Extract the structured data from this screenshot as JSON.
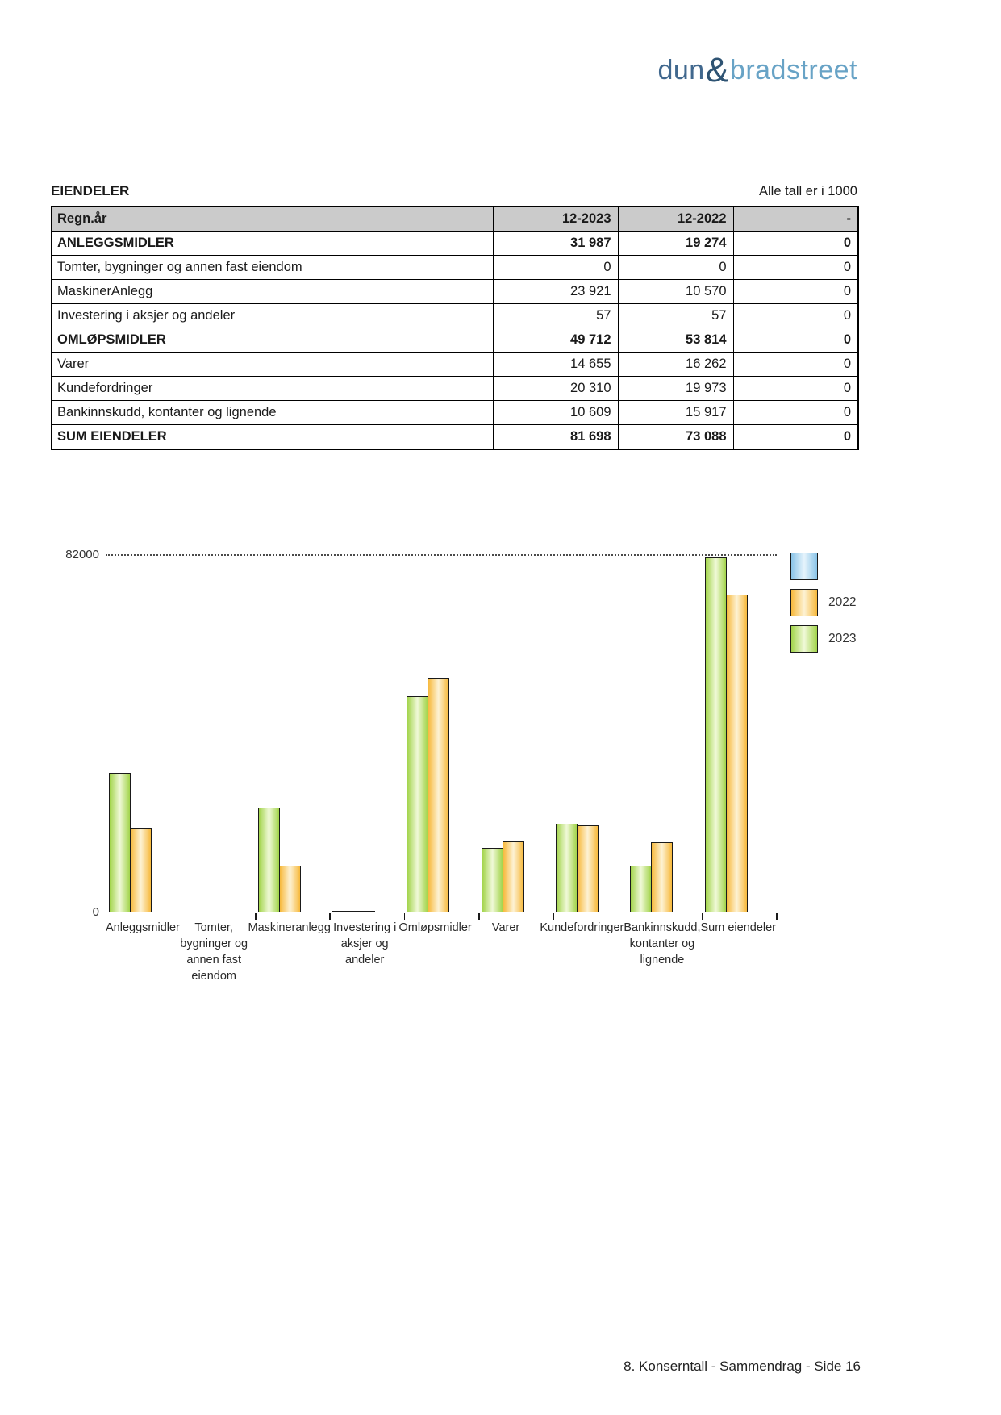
{
  "brand": {
    "part1": "dun",
    "amp": "&",
    "part2": "bradstreet",
    "color_part1": "#41688e",
    "color_amp": "#2e5373",
    "color_part2": "#68a3c6"
  },
  "header": {
    "title": "EIENDELER",
    "note": "Alle tall er i 1000"
  },
  "table": {
    "columns": [
      "Regn.år",
      "12-2023",
      "12-2022",
      "-"
    ],
    "rows": [
      {
        "cells": [
          "ANLEGGSMIDLER",
          "31 987",
          "19 274",
          "0"
        ],
        "bold": true
      },
      {
        "cells": [
          "Tomter, bygninger og annen fast eiendom",
          "0",
          "0",
          "0"
        ],
        "bold": false
      },
      {
        "cells": [
          "MaskinerAnlegg",
          "23 921",
          "10 570",
          "0"
        ],
        "bold": false
      },
      {
        "cells": [
          "Investering i aksjer og andeler",
          "57",
          "57",
          "0"
        ],
        "bold": false
      },
      {
        "cells": [
          "OMLØPSMIDLER",
          "49 712",
          "53 814",
          "0"
        ],
        "bold": true
      },
      {
        "cells": [
          "Varer",
          "14 655",
          "16 262",
          "0"
        ],
        "bold": false
      },
      {
        "cells": [
          "Kundefordringer",
          "20 310",
          "19 973",
          "0"
        ],
        "bold": false
      },
      {
        "cells": [
          "Bankinnskudd, kontanter og lignende",
          "10 609",
          "15 917",
          "0"
        ],
        "bold": false
      },
      {
        "cells": [
          "SUM EIENDELER",
          "81 698",
          "73 088",
          "0"
        ],
        "bold": true
      }
    ]
  },
  "chart_data": {
    "type": "bar",
    "title": "",
    "xlabel": "",
    "ylabel": "",
    "ylim": [
      0,
      82000
    ],
    "ytick_labels": {
      "top": "82000",
      "bottom": "0"
    },
    "grid": "dotted line at y max only",
    "legend_position": "right",
    "categories": [
      "Anleggsmidler",
      "Tomter, bygninger og annen fast eiendom",
      "Maskineranlegg",
      "Investering i aksjer og andeler",
      "Omløpsmidler",
      "Varer",
      "Kundefordringer",
      "Bankinnskudd, kontanter og lignende",
      "Sum eiendeler"
    ],
    "category_label_lines": [
      [
        "Anleggsmidler"
      ],
      [
        "Tomter,",
        "bygninger og",
        "annen fast",
        "eiendom"
      ],
      [
        "Maskineranlegg"
      ],
      [
        "Investering i",
        "aksjer og",
        "andeler"
      ],
      [
        "Omløpsmidler"
      ],
      [
        "Varer"
      ],
      [
        "Kundefordringer"
      ],
      [
        "Bankinnskudd,",
        "kontanter og",
        "lignende"
      ],
      [
        "Sum eiendeler"
      ]
    ],
    "series": [
      {
        "name": "2023",
        "edge": "#a2d44b",
        "mid": "#f0f9d8",
        "values": [
          31987,
          0,
          23921,
          57,
          49712,
          14655,
          20310,
          10609,
          81698
        ]
      },
      {
        "name": "2022",
        "edge": "#f7b93c",
        "mid": "#fdf2d4",
        "values": [
          19274,
          0,
          10570,
          57,
          53814,
          16262,
          19973,
          15917,
          73088
        ]
      }
    ],
    "legend": [
      {
        "label": "",
        "edge": "#8ac4e8",
        "mid": "#e6f4fc"
      },
      {
        "label": "2022",
        "edge": "#f7b93c",
        "mid": "#fdf2d4"
      },
      {
        "label": "2023",
        "edge": "#a2d44b",
        "mid": "#f0f9d8"
      }
    ]
  },
  "footer": {
    "text": "8. Konserntall - Sammendrag - Side 16"
  }
}
